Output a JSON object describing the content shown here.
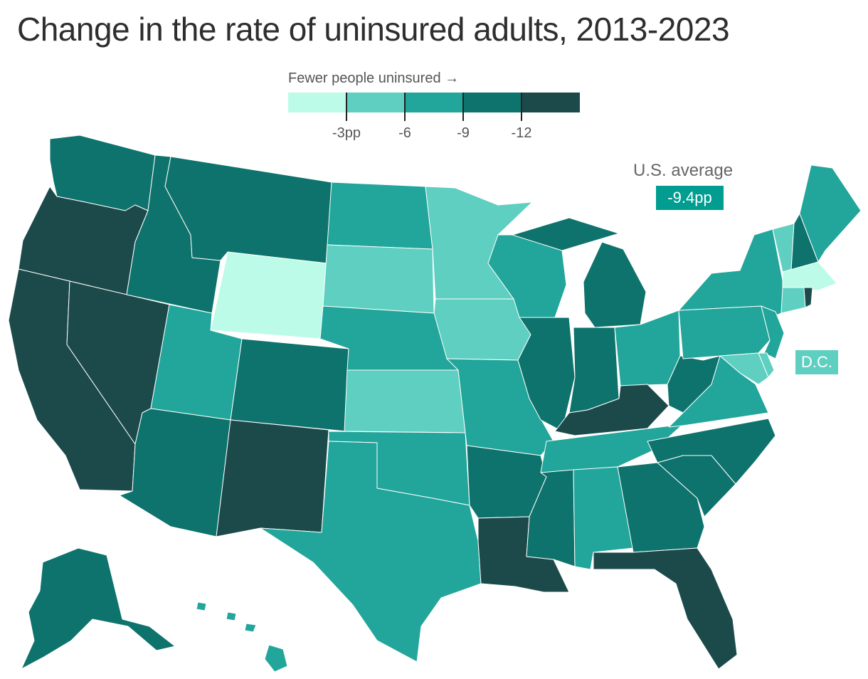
{
  "title": "Change in the rate of uninsured adults, 2013‑2023",
  "legend": {
    "title": "Fewer people uninsured →",
    "colors": [
      "#bdfbe9",
      "#5ecfc0",
      "#22a59a",
      "#0e736c",
      "#1c4a4b"
    ],
    "ticks": [
      "‑3pp",
      "‑6",
      "‑9",
      "‑12"
    ]
  },
  "us_average": {
    "label": "U.S. average",
    "value": "‑9.4pp",
    "color": "#009d90"
  },
  "dc": {
    "label": "D.C.",
    "color": "#5ecfc0"
  }
}
